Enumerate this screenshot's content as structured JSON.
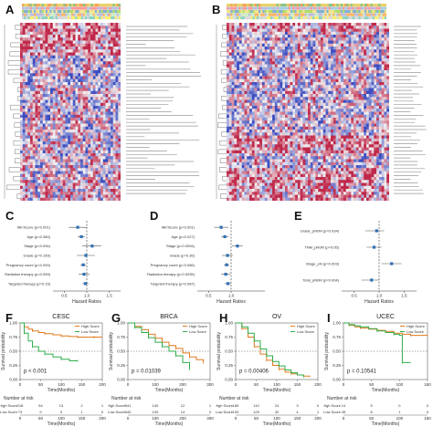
{
  "colors": {
    "heat_low": "#3b4cc0",
    "heat_mid": "#f2f2f2",
    "heat_high": "#c0284a",
    "high_score": "#e07a1f",
    "low_score": "#2fae4a",
    "forest_point": "#2e6fb5"
  },
  "panel_labels": {
    "a": "A",
    "b": "B",
    "c": "C",
    "d": "D",
    "e": "E",
    "f": "F",
    "g": "G",
    "h": "H",
    "i": "I"
  },
  "forest_C": {
    "rows": [
      "METscore (p<0.001)",
      "Age (p=0.380)",
      "Stage (p=0.094)",
      "Grade (p=0.159)",
      "Pregnancy count (p=0.093)",
      "Radiation therapy (p=0.059)",
      "Targeted therapy (p=0.15)"
    ],
    "xlabel": "Hazard Ratios",
    "ticks": [
      "0.5",
      "1.0",
      "1.5"
    ]
  },
  "forest_D": {
    "rows": [
      "METscore (p<0.001)",
      "Age (p=0.027)",
      "Stage (p=0.0094)",
      "Grade (p=0.35)",
      "Pregnancy count (p=0.066)",
      "Radiation therapy (p=0.0035)",
      "Targeted therapy (p=0.087)"
    ],
    "xlabel": "Hazard Ratios",
    "ticks": [
      "0.5",
      "1.0"
    ]
  },
  "forest_E": {
    "rows": [
      "Grade_pN0M (p=0.034)",
      "TNM_pN0M (p=0.05)",
      "Stage_pN (p=0.003)",
      "Total_pN0M (p=0.004)"
    ],
    "xlabel": "Hazard Ratios",
    "ticks": [
      "0.5",
      "1.0",
      "1.5"
    ]
  },
  "chart_data": [
    {
      "type": "line",
      "panel": "F",
      "title": "CESC",
      "xlabel": "Time(Months)",
      "ylabel": "Survival probability",
      "xlim": [
        0,
        200
      ],
      "ylim": [
        0,
        1
      ],
      "xticks": [
        "0",
        "50",
        "100",
        "150",
        "200"
      ],
      "yticks": [
        "0.00",
        "0.25",
        "0.50",
        "0.75",
        "1.00"
      ],
      "legend": [
        "High Score",
        "Low Score"
      ],
      "pvalue": "p < 0.001",
      "series": [
        {
          "name": "High Score",
          "x": [
            0,
            10,
            20,
            30,
            45,
            60,
            80,
            100,
            120,
            140,
            160,
            180,
            200
          ],
          "y": [
            1.0,
            0.93,
            0.89,
            0.86,
            0.83,
            0.81,
            0.79,
            0.77,
            0.76,
            0.75,
            0.75,
            0.75,
            0.75
          ]
        },
        {
          "name": "Low Score",
          "x": [
            0,
            10,
            20,
            30,
            45,
            60,
            80,
            100,
            120,
            140
          ],
          "y": [
            1.0,
            0.82,
            0.68,
            0.58,
            0.5,
            0.45,
            0.4,
            0.36,
            0.33,
            0.33
          ]
        }
      ],
      "risk_table": {
        "title": "Number at risk",
        "rows": [
          {
            "name": "High Score",
            "values": [
              "218",
              "54",
              "13",
              "2",
              "1"
            ]
          },
          {
            "name": "Low Score",
            "values": [
              "73",
              "9",
              "3",
              "1",
              "0"
            ]
          }
        ]
      }
    },
    {
      "type": "line",
      "panel": "G",
      "title": "BRCA",
      "xlabel": "Time(Months)",
      "ylabel": "Survival probability",
      "xlim": [
        0,
        300
      ],
      "ylim": [
        0,
        1
      ],
      "xticks": [
        "0",
        "100",
        "200",
        "300"
      ],
      "yticks": [
        "0.00",
        "0.25",
        "0.50",
        "0.75",
        "1.00"
      ],
      "legend": [
        "High Score",
        "Low Score"
      ],
      "pvalue": "p = 0.01039",
      "series": [
        {
          "name": "High Score",
          "x": [
            0,
            25,
            50,
            75,
            100,
            125,
            150,
            175,
            200,
            225,
            250,
            275
          ],
          "y": [
            1.0,
            0.94,
            0.88,
            0.8,
            0.73,
            0.66,
            0.6,
            0.55,
            0.47,
            0.4,
            0.35,
            0.3
          ]
        },
        {
          "name": "Low Score",
          "x": [
            0,
            25,
            50,
            75,
            100,
            125,
            150,
            175,
            200,
            225
          ],
          "y": [
            1.0,
            0.92,
            0.83,
            0.74,
            0.66,
            0.58,
            0.5,
            0.42,
            0.3,
            0.18
          ]
        }
      ],
      "risk_table": {
        "title": "Number at risk",
        "rows": [
          {
            "name": "High Score",
            "values": [
              "541",
              "140",
              "12",
              "1"
            ]
          },
          {
            "name": "Low Score",
            "values": [
              "540",
              "109",
              "14",
              "0"
            ]
          }
        ]
      }
    },
    {
      "type": "line",
      "panel": "H",
      "title": "OV",
      "xlabel": "Time(Months)",
      "ylabel": "Survival probability",
      "xlim": [
        0,
        200
      ],
      "ylim": [
        0,
        1
      ],
      "xticks": [
        "0",
        "50",
        "100",
        "150",
        "200"
      ],
      "yticks": [
        "0.00",
        "0.25",
        "0.50",
        "0.75",
        "1.00"
      ],
      "legend": [
        "High Score",
        "Low Score"
      ],
      "pvalue": "p = 0.00406",
      "series": [
        {
          "name": "High Score",
          "x": [
            0,
            15,
            30,
            45,
            60,
            75,
            90,
            105,
            120,
            135,
            150,
            165,
            180
          ],
          "y": [
            1.0,
            0.9,
            0.75,
            0.58,
            0.45,
            0.34,
            0.25,
            0.18,
            0.13,
            0.1,
            0.08,
            0.06,
            0.04
          ]
        },
        {
          "name": "Low Score",
          "x": [
            0,
            15,
            30,
            45,
            60,
            75,
            90,
            105,
            120,
            135,
            150,
            165
          ],
          "y": [
            1.0,
            0.93,
            0.82,
            0.68,
            0.54,
            0.42,
            0.32,
            0.24,
            0.17,
            0.12,
            0.08,
            0.05
          ]
        }
      ],
      "risk_table": {
        "title": "Number at risk",
        "rows": [
          {
            "name": "High Score",
            "values": [
              "185",
              "110",
              "24",
              "3",
              "0"
            ]
          },
          {
            "name": "Low Score",
            "values": [
              "193",
              "129",
              "32",
              "4",
              "1"
            ]
          }
        ]
      }
    },
    {
      "type": "line",
      "panel": "I",
      "title": "UCEC",
      "xlabel": "Time(Months)",
      "ylabel": "Survival probability",
      "xlim": [
        0,
        150
      ],
      "ylim": [
        0,
        1
      ],
      "xticks": [
        "0",
        "50",
        "100",
        "150"
      ],
      "yticks": [
        "0.00",
        "0.25",
        "0.50",
        "0.75",
        "1.00"
      ],
      "legend": [
        "High Score",
        "Low Score"
      ],
      "pvalue": "p = 0.10541",
      "series": [
        {
          "name": "High Score",
          "x": [
            0,
            10,
            20,
            30,
            45,
            60,
            75,
            90,
            105,
            120,
            135,
            150
          ],
          "y": [
            1.0,
            0.96,
            0.93,
            0.91,
            0.89,
            0.87,
            0.85,
            0.82,
            0.8,
            0.78,
            0.78,
            0.78
          ]
        },
        {
          "name": "Low Score",
          "x": [
            0,
            10,
            20,
            30,
            45,
            60,
            75,
            90,
            100,
            105,
            120
          ],
          "y": [
            1.0,
            0.97,
            0.95,
            0.93,
            0.9,
            0.86,
            0.83,
            0.8,
            0.78,
            0.3,
            0.3
          ]
        }
      ],
      "risk_table": {
        "title": "Number at risk",
        "rows": [
          {
            "name": "High Score",
            "values": [
              "14",
              "5",
              "0",
              "0"
            ]
          },
          {
            "name": "Low Score",
            "values": [
              "45",
              "8",
              "1",
              "0"
            ]
          }
        ]
      }
    }
  ]
}
